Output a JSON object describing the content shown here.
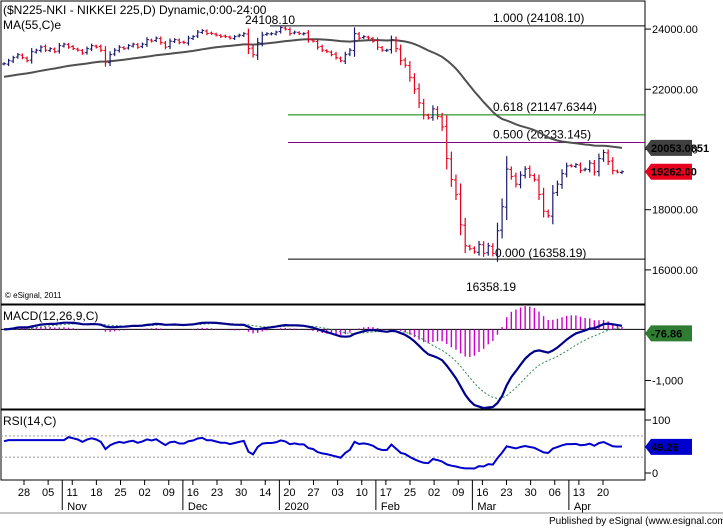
{
  "header": {
    "symbol_title": "($N225-NKI - NIKKEI 225,D) Dynamic,0:00-24:00",
    "ma_label": "MA(55,C)e",
    "watermark": "© eSignal, 2011"
  },
  "footer": {
    "published_by": "Published by eSignal (www.esignal.com)"
  },
  "colors": {
    "up": "#1a1a6e",
    "down": "#e8001c",
    "ma": "#505050",
    "fib_top": "#000000",
    "fib_618": "#008000",
    "fib_500": "#800080",
    "fib_bottom": "#000000",
    "macd_line": "#00008b",
    "signal_line": "#2e8b57",
    "histogram": "#cc00cc",
    "rsi_line": "#0000cd",
    "badge_dark": "#404040",
    "badge_red": "#e8001c",
    "badge_green": "#2e7d32",
    "badge_blue": "#0000cd"
  },
  "chart_data": [
    {
      "type": "candlestick",
      "title": "($N225-NKI - NIKKEI 225,D) Dynamic,0:00-24:00",
      "x_tick_labels": [
        "28",
        "05",
        "11",
        "18",
        "25",
        "02",
        "09",
        "16",
        "23",
        "30",
        "14",
        "20",
        "27",
        "03",
        "10",
        "17",
        "25",
        "02",
        "09",
        "16",
        "23",
        "30",
        "06",
        "13",
        "20"
      ],
      "month_labels": [
        "Nov",
        "Dec",
        "2020",
        "Feb",
        "Mar",
        "Apr"
      ],
      "y_tick_labels": [
        "24000.00",
        "22000.00",
        "20000.00",
        "18000.00",
        "16000.00"
      ],
      "ylim": [
        15000,
        24700
      ],
      "ohlc_closes": [
        22850,
        22950,
        23050,
        23150,
        23050,
        22950,
        23250,
        23300,
        23400,
        23300,
        23350,
        23250,
        23450,
        23500,
        23400,
        23350,
        23300,
        23200,
        23350,
        23450,
        23400,
        23300,
        22900,
        23150,
        23300,
        23400,
        23350,
        23450,
        23500,
        23400,
        23500,
        23650,
        23600,
        23700,
        23550,
        23400,
        23600,
        23650,
        23550,
        23550,
        23700,
        23750,
        23900,
        23950,
        23850,
        23850,
        23800,
        23750,
        23750,
        23700,
        23750,
        23800,
        23850,
        23350,
        23150,
        23550,
        23800,
        23850,
        23850,
        23900,
        24050,
        24000,
        23850,
        23900,
        23850,
        23850,
        23650,
        23600,
        23400,
        23300,
        23250,
        23150,
        23050,
        22950,
        23150,
        23300,
        23850,
        23700,
        23750,
        23700,
        23600,
        23400,
        23300,
        23300,
        23650,
        23350,
        22950,
        22800,
        22400,
        22000,
        21550,
        21150,
        21050,
        21350,
        21100,
        20750,
        19700,
        19000,
        18500,
        17500,
        16800,
        16700,
        16600,
        16850,
        16550,
        16800,
        16550,
        17300,
        18100,
        19350,
        19100,
        18850,
        19150,
        19350,
        19150,
        19000,
        18500,
        17950,
        17800,
        18550,
        18850,
        19200,
        19450,
        19450,
        19500,
        19300,
        19350,
        19550,
        19250,
        19700,
        19900,
        19600,
        19300,
        19250,
        19262
      ],
      "last_close": "19262.00",
      "moving_average": {
        "name": "MA(55,C)e",
        "period": 55,
        "last": "20053.0851"
      },
      "annotations": {
        "high": "24108.10",
        "low": "16358.19"
      },
      "fibonacci": [
        {
          "label": "1.000 (24108.10)",
          "value": 24108.1
        },
        {
          "label": "0.618 (21147.6344)",
          "value": 21147.6344
        },
        {
          "label": "0.500 (20233.145)",
          "value": 20233.145
        },
        {
          "label": "0.000 (16358.19)",
          "value": 16358.19
        }
      ]
    },
    {
      "type": "line",
      "title": "MACD(12,26,9,C)",
      "y_tick_labels": [
        "-1,000"
      ],
      "ylim": [
        -1500,
        400
      ],
      "last_value": "-76.86"
    },
    {
      "type": "line",
      "title": "RSI(14,C)",
      "y_tick_labels": [
        "100",
        "50",
        "0"
      ],
      "ylim": [
        0,
        100
      ],
      "last_value": "49.26"
    }
  ]
}
